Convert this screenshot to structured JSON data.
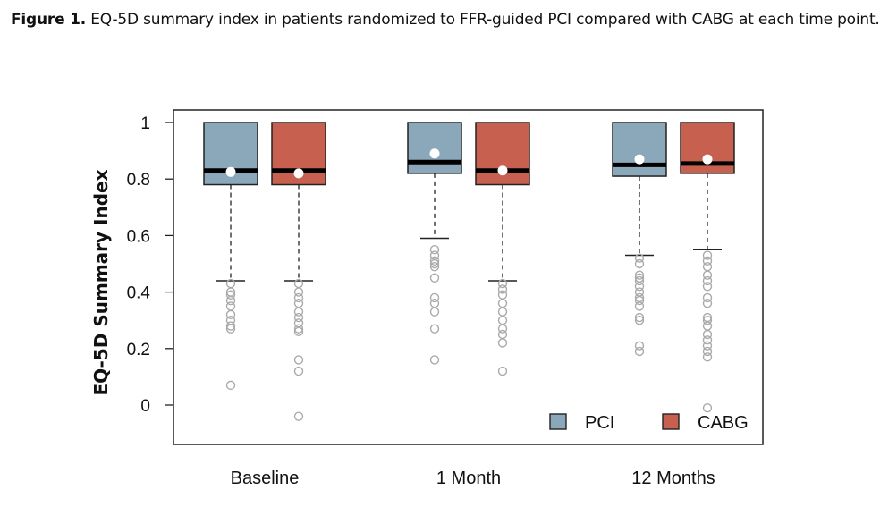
{
  "caption": {
    "label": "Figure 1.",
    "text": "EQ-5D summary index in patients randomized to FFR-guided PCI compared with CABG at each time point."
  },
  "colors": {
    "pci": "#8ba8ba",
    "cabg": "#c86050",
    "outlier": "#aaaaaa",
    "mean": "#ffffff"
  },
  "chart_data": {
    "type": "box",
    "title": "",
    "xlabel": "",
    "ylabel": "EQ-5D Summary Index",
    "ylim": [
      -0.14,
      1.05
    ],
    "yticks": [
      0,
      0.2,
      0.4,
      0.6,
      0.8,
      1
    ],
    "ytick_labels": [
      "0",
      "0.2",
      "0.4",
      "0.6",
      "0.8",
      "1"
    ],
    "categories": [
      "Baseline",
      "1 Month",
      "12 Months"
    ],
    "legend": {
      "position": "bottom-right",
      "entries": [
        "PCI",
        "CABG"
      ]
    },
    "series": [
      {
        "name": "PCI",
        "boxes": [
          {
            "q1": 0.78,
            "median": 0.83,
            "q3": 1.0,
            "mean": 0.825,
            "whisker_low": 0.44,
            "whisker_high": 1.0,
            "outliers": [
              0.43,
              0.4,
              0.39,
              0.37,
              0.35,
              0.32,
              0.3,
              0.28,
              0.27,
              0.07
            ]
          },
          {
            "q1": 0.82,
            "median": 0.86,
            "q3": 1.0,
            "mean": 0.89,
            "whisker_low": 0.59,
            "whisker_high": 1.0,
            "outliers": [
              0.55,
              0.53,
              0.51,
              0.5,
              0.49,
              0.45,
              0.38,
              0.36,
              0.33,
              0.27,
              0.16
            ]
          },
          {
            "q1": 0.81,
            "median": 0.85,
            "q3": 1.0,
            "mean": 0.87,
            "whisker_low": 0.53,
            "whisker_high": 1.0,
            "outliers": [
              0.52,
              0.5,
              0.46,
              0.45,
              0.44,
              0.42,
              0.4,
              0.38,
              0.37,
              0.35,
              0.31,
              0.3,
              0.21,
              0.19
            ]
          }
        ]
      },
      {
        "name": "CABG",
        "boxes": [
          {
            "q1": 0.78,
            "median": 0.83,
            "q3": 1.0,
            "mean": 0.82,
            "whisker_low": 0.44,
            "whisker_high": 1.0,
            "outliers": [
              0.43,
              0.4,
              0.38,
              0.36,
              0.33,
              0.31,
              0.29,
              0.27,
              0.26,
              0.16,
              0.12,
              -0.04
            ]
          },
          {
            "q1": 0.78,
            "median": 0.83,
            "q3": 1.0,
            "mean": 0.83,
            "whisker_low": 0.44,
            "whisker_high": 1.0,
            "outliers": [
              0.43,
              0.41,
              0.39,
              0.36,
              0.33,
              0.3,
              0.27,
              0.25,
              0.22,
              0.12
            ]
          },
          {
            "q1": 0.82,
            "median": 0.855,
            "q3": 1.0,
            "mean": 0.87,
            "whisker_low": 0.55,
            "whisker_high": 1.0,
            "outliers": [
              0.53,
              0.51,
              0.49,
              0.46,
              0.44,
              0.42,
              0.38,
              0.36,
              0.31,
              0.3,
              0.28,
              0.25,
              0.23,
              0.21,
              0.19,
              0.17,
              -0.01
            ]
          }
        ]
      }
    ]
  }
}
